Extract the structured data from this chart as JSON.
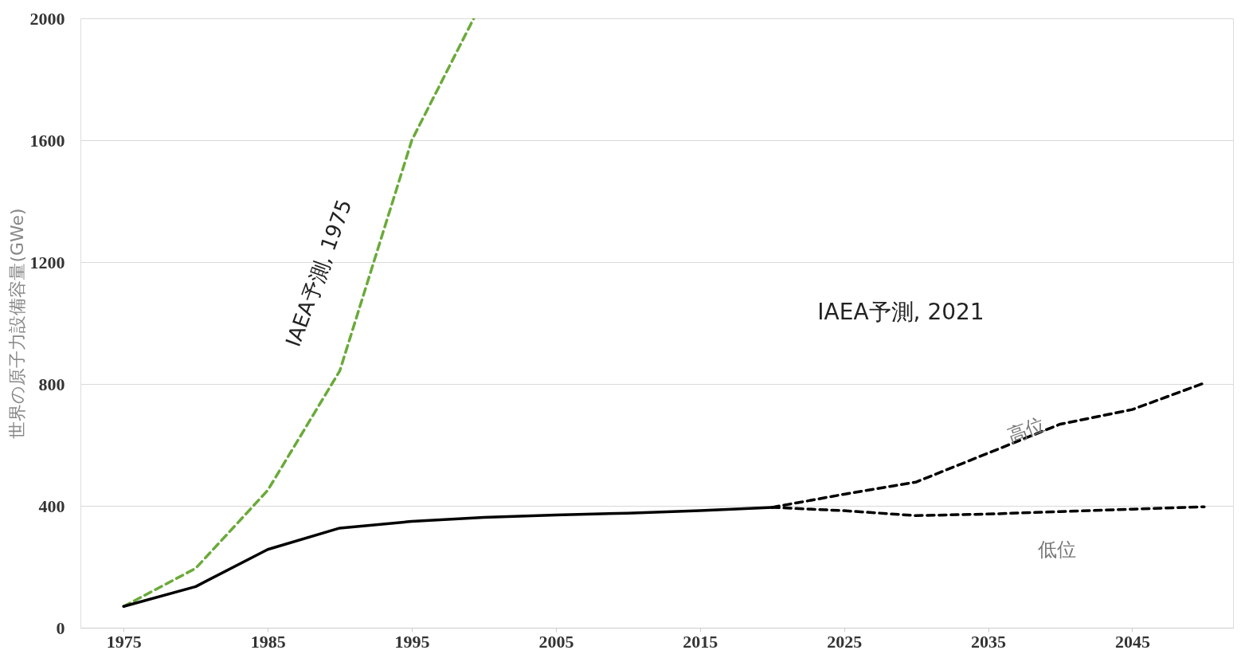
{
  "chart_data": {
    "type": "line",
    "ylabel": "世界の原子力設備容量(GWe)",
    "xlim": [
      1972,
      2052
    ],
    "xticks": [
      1975,
      1985,
      1995,
      2005,
      2015,
      2025,
      2035,
      2045
    ],
    "ylim": [
      0,
      2000
    ],
    "yticks": [
      0,
      400,
      800,
      1200,
      1600,
      2000
    ],
    "grid": "y",
    "legend": false,
    "marker": "none",
    "series": [
      {
        "color": "#6aaa3a",
        "line_style": "dashed",
        "x": [
          1975,
          1980,
          1985,
          1990,
          1995,
          1999.3
        ],
        "values": [
          70,
          195,
          451,
          843,
          1600,
          2000
        ]
      },
      {
        "color": "#000000",
        "line_style": "solid",
        "x": [
          1975,
          1980,
          1985,
          1990,
          1995,
          2000,
          2005,
          2010,
          2015,
          2020
        ],
        "values": [
          70,
          135,
          257,
          327,
          349,
          362,
          370,
          376,
          384,
          395
        ]
      },
      {
        "name": "高位",
        "color": "#000000",
        "line_style": "dashed",
        "x": [
          2020,
          2025,
          2030,
          2035,
          2040,
          2045,
          2050
        ],
        "values": [
          395,
          438,
          478,
          573,
          668,
          716,
          803
        ]
      },
      {
        "name": "低位",
        "color": "#000000",
        "line_style": "dashed",
        "x": [
          2020,
          2025,
          2030,
          2035,
          2040,
          2045,
          2050
        ],
        "values": [
          395,
          384,
          368,
          373,
          381,
          389,
          397
        ]
      }
    ],
    "annotations": [
      "IAEA予測, 1975",
      "IAEA予測, 2021"
    ]
  }
}
